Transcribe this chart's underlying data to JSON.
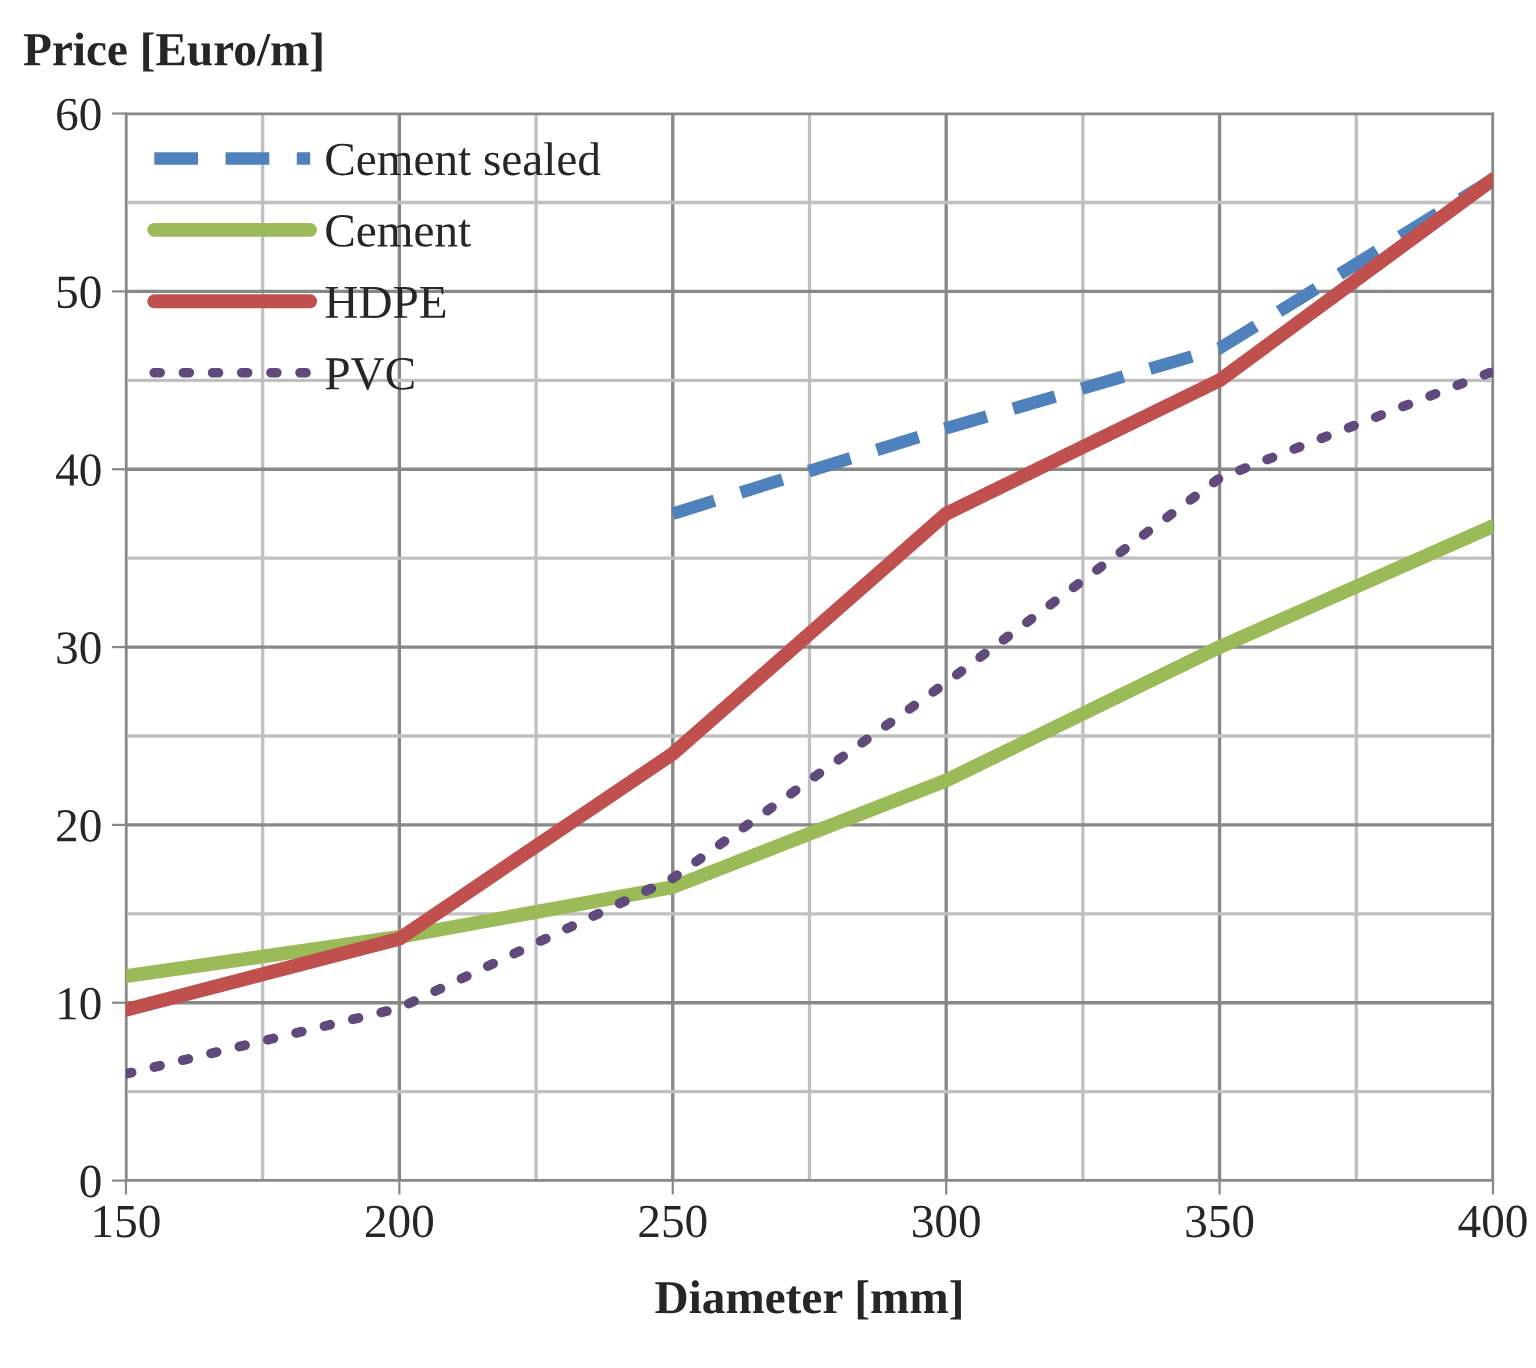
{
  "chart_data": {
    "type": "line",
    "xlabel": "Diameter [mm]",
    "ylabel": "Price [Euro/m]",
    "x": [
      150,
      200,
      250,
      300,
      350,
      400
    ],
    "xlim": [
      150,
      400
    ],
    "xticks": [
      150,
      200,
      250,
      300,
      350,
      400
    ],
    "ylim": [
      0,
      60
    ],
    "yticks": [
      0,
      10,
      20,
      30,
      40,
      50,
      60
    ],
    "grid": true,
    "legend": "top left",
    "series": [
      {
        "name": "Cement sealed",
        "color": "#4f81bd",
        "line_style": "dashed",
        "values": [
          null,
          null,
          37.5,
          42.3,
          46.8,
          56.3
        ]
      },
      {
        "name": "Cement",
        "color": "#9bbb59",
        "line_style": "solid",
        "values": [
          11.5,
          13.7,
          16.5,
          22.5,
          30,
          36.8
        ]
      },
      {
        "name": "HDPE",
        "color": "#c0504d",
        "line_style": "solid",
        "values": [
          9.6,
          13.6,
          24,
          37.5,
          45,
          56.3
        ]
      },
      {
        "name": "PVC",
        "color": "#604a7b",
        "line_style": "dotted",
        "values": [
          6,
          9.7,
          17,
          28,
          39.5,
          45.5
        ]
      }
    ]
  }
}
